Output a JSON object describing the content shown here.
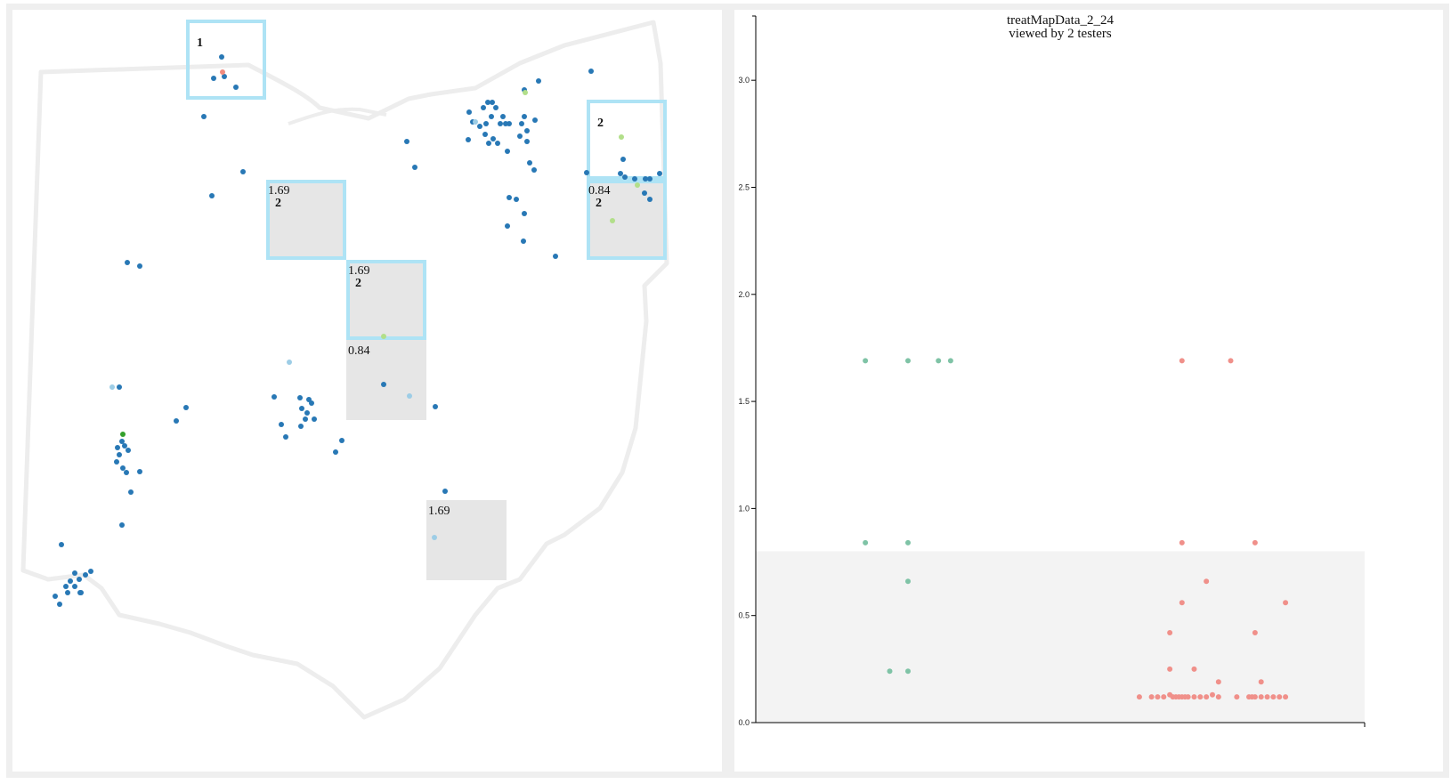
{
  "colors": {
    "highlight_border": "#aee3f5",
    "cell_fill": "#e6e6e6",
    "state_outline": "#ededed",
    "dot_primary": "#2878b5",
    "dot_light": "#9dcde6",
    "dot_green_light": "#b2df8a",
    "dot_green_dark": "#33a02c",
    "dot_salmon": "#f08c80",
    "strip_teal": "#7fc3a6",
    "strip_salmon": "#f0908a",
    "threshold_band": "#f3f3f3"
  },
  "map": {
    "cells": [
      {
        "id": "c1",
        "value": "",
        "count": "1",
        "highlighted": true,
        "filled": false
      },
      {
        "id": "c2",
        "value": "1.69",
        "count": "2",
        "highlighted": true,
        "filled": true
      },
      {
        "id": "c3",
        "value": "1.69",
        "count": "2",
        "highlighted": true,
        "filled": true
      },
      {
        "id": "c4",
        "value": "0.84",
        "count": "",
        "highlighted": false,
        "filled": true
      },
      {
        "id": "c5",
        "value": "",
        "count": "2",
        "highlighted": true,
        "filled": false
      },
      {
        "id": "c6",
        "value": "0.84",
        "count": "2",
        "highlighted": true,
        "filled": true
      },
      {
        "id": "c7",
        "value": "1.69",
        "count": "",
        "highlighted": false,
        "filled": true
      }
    ]
  },
  "chart_data": {
    "type": "scatter",
    "title": "treatMapData_2_24",
    "subtitle": "viewed by 2 testers",
    "ylim": [
      0,
      3.3
    ],
    "yticks": [
      "0.0",
      "0.5",
      "1.0",
      "1.5",
      "2.0",
      "2.5",
      "3.0"
    ],
    "threshold": 0.8,
    "series": [
      {
        "color": "#7fc3a6",
        "points": [
          [
            0.18,
            1.69
          ],
          [
            0.25,
            1.69
          ],
          [
            0.3,
            1.69
          ],
          [
            0.32,
            1.69
          ],
          [
            0.18,
            0.84
          ],
          [
            0.25,
            0.84
          ],
          [
            0.25,
            0.66
          ],
          [
            0.22,
            0.24
          ],
          [
            0.25,
            0.24
          ]
        ]
      },
      {
        "color": "#f0908a",
        "points": [
          [
            0.7,
            1.69
          ],
          [
            0.78,
            1.69
          ],
          [
            0.7,
            0.84
          ],
          [
            0.82,
            0.84
          ],
          [
            0.74,
            0.66
          ],
          [
            0.7,
            0.56
          ],
          [
            0.87,
            0.56
          ],
          [
            0.68,
            0.42
          ],
          [
            0.82,
            0.42
          ],
          [
            0.68,
            0.25
          ],
          [
            0.72,
            0.25
          ],
          [
            0.83,
            0.19
          ],
          [
            0.76,
            0.19
          ],
          [
            0.63,
            0.12
          ],
          [
            0.65,
            0.12
          ],
          [
            0.66,
            0.12
          ],
          [
            0.67,
            0.12
          ],
          [
            0.68,
            0.13
          ],
          [
            0.685,
            0.12
          ],
          [
            0.69,
            0.12
          ],
          [
            0.695,
            0.12
          ],
          [
            0.7,
            0.12
          ],
          [
            0.705,
            0.12
          ],
          [
            0.71,
            0.12
          ],
          [
            0.72,
            0.12
          ],
          [
            0.73,
            0.12
          ],
          [
            0.74,
            0.12
          ],
          [
            0.75,
            0.13
          ],
          [
            0.76,
            0.12
          ],
          [
            0.79,
            0.12
          ],
          [
            0.81,
            0.12
          ],
          [
            0.815,
            0.12
          ],
          [
            0.82,
            0.12
          ],
          [
            0.83,
            0.12
          ],
          [
            0.84,
            0.12
          ],
          [
            0.85,
            0.12
          ],
          [
            0.86,
            0.12
          ],
          [
            0.87,
            0.12
          ]
        ]
      }
    ]
  }
}
